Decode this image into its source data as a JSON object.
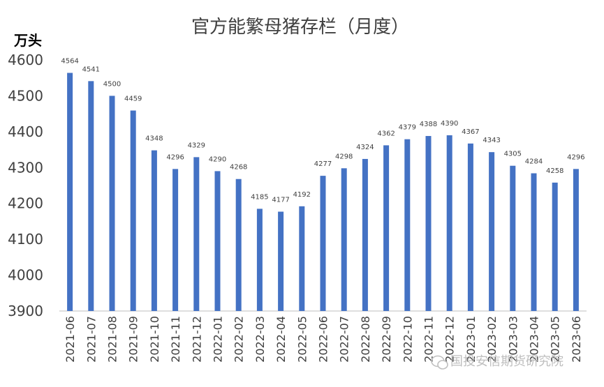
{
  "chart_data": {
    "type": "bar",
    "title": "官方能繁母猪存栏（月度）",
    "ylabel": "万头",
    "xlabel": "",
    "ylim": [
      3900,
      4600
    ],
    "yticks": [
      3900,
      4000,
      4100,
      4200,
      4300,
      4400,
      4500,
      4600
    ],
    "grid": false,
    "legend": "none",
    "bar_color": "#4472c4",
    "categories": [
      "2021-06",
      "2021-07",
      "2021-08",
      "2021-09",
      "2021-10",
      "2021-11",
      "2021-12",
      "2022-01",
      "2022-02",
      "2022-03",
      "2022-04",
      "2022-05",
      "2022-06",
      "2022-07",
      "2022-08",
      "2022-09",
      "2022-10",
      "2022-11",
      "2022-12",
      "2023-01",
      "2023-02",
      "2023-03",
      "2023-04",
      "2023-05",
      "2023-06"
    ],
    "values": [
      4564,
      4541,
      4500,
      4459,
      4348,
      4296,
      4329,
      4290,
      4268,
      4185,
      4177,
      4192,
      4277,
      4298,
      4324,
      4362,
      4379,
      4388,
      4390,
      4367,
      4343,
      4305,
      4284,
      4258,
      4296
    ]
  },
  "watermark": {
    "text": "国投安信期货研究院"
  }
}
